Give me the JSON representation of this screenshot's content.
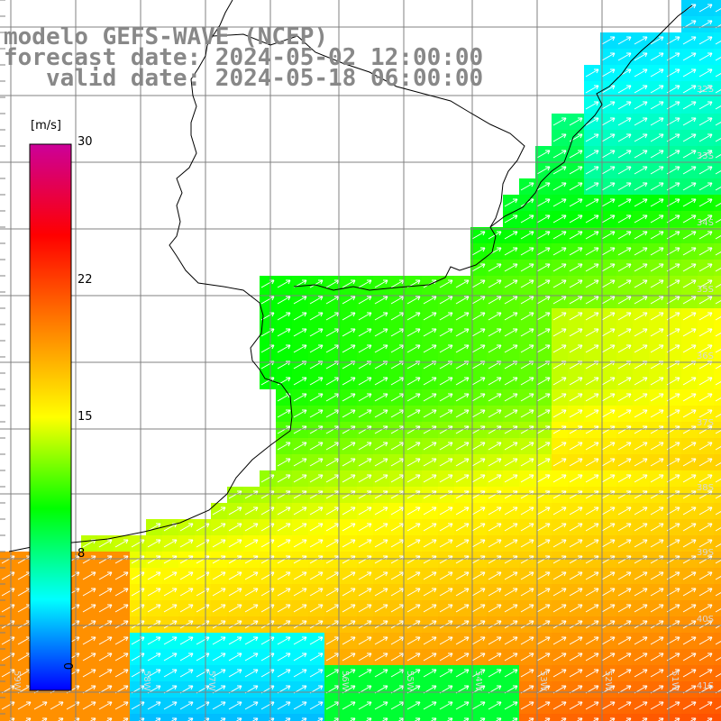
{
  "titles": [
    "modelo GEFS-WAVE (NCEP)",
    "forecast date: 2024-05-02 12:00:00",
    "   valid date: 2024-05-18 06:00:00"
  ],
  "colorbar": {
    "unit": "[m/s]",
    "ticks": [
      "30",
      "22",
      "15",
      "8",
      "0"
    ],
    "tick_values": [
      30,
      22,
      15,
      8,
      0
    ],
    "colors": [
      "#0000ff",
      "#00ffff",
      "#00ff00",
      "#ffff00",
      "#ff8000",
      "#ff0000",
      "#cc0099"
    ]
  },
  "grid": {
    "lat_labels": [
      "32S",
      "33S",
      "34S",
      "35S",
      "36S",
      "37S",
      "38S",
      "39S",
      "40S",
      "41S"
    ],
    "lon_labels": [
      "59W",
      "58W",
      "57W",
      "56W",
      "55W",
      "54W",
      "53W",
      "52W",
      "51W"
    ]
  },
  "map": {
    "land_color": "#ffffff",
    "coast_color": "#000000",
    "gridline_color": "#808080",
    "arrow_color": "#ffffff",
    "arrow_direction": "northeast"
  }
}
